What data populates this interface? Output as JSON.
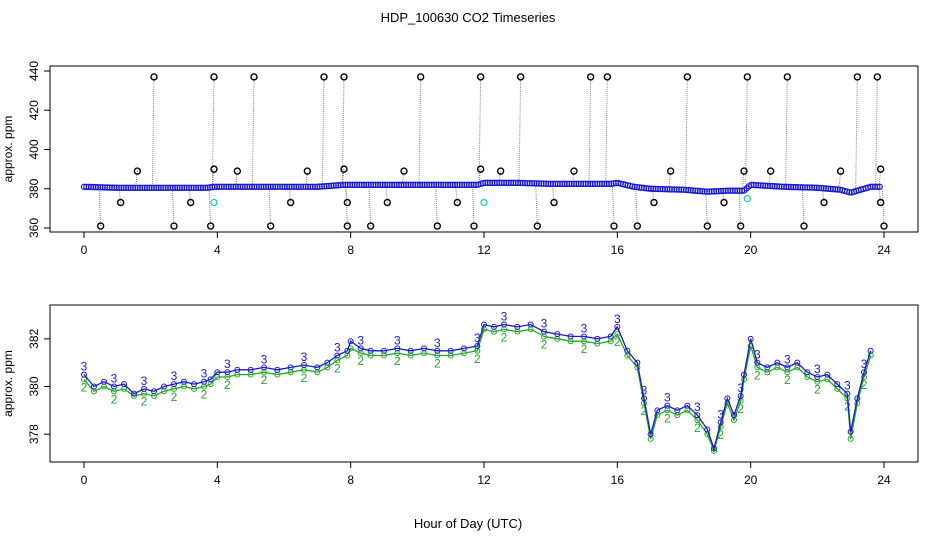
{
  "title": "HDP_100630  CO2 Timeseries",
  "xlabel": "Hour of Day (UTC)",
  "colors": {
    "frame": "#000000",
    "series1": "#1a1acc",
    "series2": "#22aa22",
    "cyan": "#22cccc",
    "spike": "#888888",
    "flag": "#000000"
  },
  "chart_data": [
    {
      "type": "scatter",
      "name": "top-panel",
      "ylabel": "approx. ppm",
      "xlim": [
        0,
        24
      ],
      "ylim": [
        360,
        440
      ],
      "xticks": [
        0,
        4,
        8,
        12,
        16,
        20,
        24
      ],
      "yticks": [
        360,
        380,
        400,
        420,
        440
      ],
      "baseline": [
        [
          0,
          381
        ],
        [
          1,
          380.5
        ],
        [
          2,
          380.5
        ],
        [
          3,
          380.5
        ],
        [
          3.7,
          380.5
        ],
        [
          3.9,
          381
        ],
        [
          5,
          381
        ],
        [
          6,
          381
        ],
        [
          7,
          381
        ],
        [
          7.8,
          382
        ],
        [
          8,
          382
        ],
        [
          9,
          382
        ],
        [
          10,
          382
        ],
        [
          11,
          382
        ],
        [
          11.8,
          382
        ],
        [
          12,
          383
        ],
        [
          13,
          383
        ],
        [
          14,
          382.5
        ],
        [
          15,
          382.5
        ],
        [
          15.8,
          382.5
        ],
        [
          16,
          383
        ],
        [
          16.5,
          381
        ],
        [
          17,
          380
        ],
        [
          18,
          379.5
        ],
        [
          18.7,
          378.5
        ],
        [
          19.3,
          379
        ],
        [
          19.8,
          379
        ],
        [
          20,
          382
        ],
        [
          21,
          381
        ],
        [
          22,
          380.5
        ],
        [
          22.7,
          379.5
        ],
        [
          23,
          378
        ],
        [
          23.6,
          381
        ]
      ],
      "cyan_points": [
        [
          3.9,
          373
        ],
        [
          12.0,
          373
        ],
        [
          19.9,
          375
        ]
      ],
      "flag_points": [
        [
          0.5,
          361
        ],
        [
          1.1,
          373
        ],
        [
          1.6,
          389
        ],
        [
          2.1,
          437
        ],
        [
          2.7,
          361
        ],
        [
          3.2,
          373
        ],
        [
          3.9,
          437
        ],
        [
          3.9,
          390
        ],
        [
          3.8,
          361
        ],
        [
          4.6,
          389
        ],
        [
          5.1,
          437
        ],
        [
          5.6,
          361
        ],
        [
          6.2,
          373
        ],
        [
          6.7,
          389
        ],
        [
          7.2,
          437
        ],
        [
          7.8,
          437
        ],
        [
          7.8,
          390
        ],
        [
          7.9,
          373
        ],
        [
          7.9,
          361
        ],
        [
          8.6,
          361
        ],
        [
          9.1,
          373
        ],
        [
          9.6,
          389
        ],
        [
          10.1,
          437
        ],
        [
          10.6,
          361
        ],
        [
          11.2,
          373
        ],
        [
          11.7,
          361
        ],
        [
          11.9,
          390
        ],
        [
          11.9,
          437
        ],
        [
          12.5,
          389
        ],
        [
          13.1,
          437
        ],
        [
          13.6,
          361
        ],
        [
          14.1,
          373
        ],
        [
          14.7,
          389
        ],
        [
          15.2,
          437
        ],
        [
          15.7,
          437
        ],
        [
          15.9,
          361
        ],
        [
          16.6,
          361
        ],
        [
          17.1,
          373
        ],
        [
          17.6,
          389
        ],
        [
          18.1,
          437
        ],
        [
          18.7,
          361
        ],
        [
          19.2,
          373
        ],
        [
          19.7,
          361
        ],
        [
          19.8,
          389
        ],
        [
          19.9,
          437
        ],
        [
          20.6,
          389
        ],
        [
          21.1,
          437
        ],
        [
          21.6,
          361
        ],
        [
          22.2,
          373
        ],
        [
          22.7,
          389
        ],
        [
          23.2,
          437
        ],
        [
          23.8,
          437
        ],
        [
          23.9,
          390
        ],
        [
          23.9,
          373
        ],
        [
          24.0,
          361
        ]
      ]
    },
    {
      "type": "line",
      "name": "bottom-panel",
      "ylabel": "approx. ppm",
      "xlim": [
        0,
        24
      ],
      "ylim": [
        377,
        383
      ],
      "xticks": [
        0,
        4,
        8,
        12,
        16,
        20,
        24
      ],
      "yticks": [
        378,
        380,
        382
      ],
      "series": [
        {
          "name": "3",
          "points": [
            [
              0,
              380.5
            ],
            [
              0.3,
              380.0
            ],
            [
              0.6,
              380.2
            ],
            [
              0.9,
              380.0
            ],
            [
              1.2,
              380.1
            ],
            [
              1.5,
              379.7
            ],
            [
              1.8,
              379.9
            ],
            [
              2.1,
              379.8
            ],
            [
              2.4,
              380.0
            ],
            [
              2.7,
              380.1
            ],
            [
              3.0,
              380.2
            ],
            [
              3.3,
              380.1
            ],
            [
              3.6,
              380.2
            ],
            [
              3.8,
              380.3
            ],
            [
              4.0,
              380.6
            ],
            [
              4.3,
              380.6
            ],
            [
              4.6,
              380.7
            ],
            [
              5.0,
              380.7
            ],
            [
              5.4,
              380.8
            ],
            [
              5.8,
              380.7
            ],
            [
              6.2,
              380.8
            ],
            [
              6.6,
              380.9
            ],
            [
              7.0,
              380.8
            ],
            [
              7.3,
              381.0
            ],
            [
              7.6,
              381.3
            ],
            [
              7.9,
              381.5
            ],
            [
              8.0,
              381.9
            ],
            [
              8.3,
              381.6
            ],
            [
              8.6,
              381.5
            ],
            [
              9.0,
              381.5
            ],
            [
              9.4,
              381.6
            ],
            [
              9.8,
              381.5
            ],
            [
              10.2,
              381.6
            ],
            [
              10.6,
              381.5
            ],
            [
              11.0,
              381.5
            ],
            [
              11.4,
              381.6
            ],
            [
              11.8,
              381.7
            ],
            [
              12.0,
              382.6
            ],
            [
              12.3,
              382.5
            ],
            [
              12.6,
              382.6
            ],
            [
              13.0,
              382.5
            ],
            [
              13.4,
              382.6
            ],
            [
              13.8,
              382.3
            ],
            [
              14.2,
              382.2
            ],
            [
              14.6,
              382.1
            ],
            [
              15.0,
              382.1
            ],
            [
              15.4,
              382.0
            ],
            [
              15.8,
              382.1
            ],
            [
              16.0,
              382.5
            ],
            [
              16.3,
              381.5
            ],
            [
              16.6,
              381.0
            ],
            [
              16.8,
              379.5
            ],
            [
              17.0,
              378.0
            ],
            [
              17.2,
              379.0
            ],
            [
              17.5,
              379.2
            ],
            [
              17.8,
              379.0
            ],
            [
              18.1,
              379.2
            ],
            [
              18.4,
              378.8
            ],
            [
              18.7,
              378.2
            ],
            [
              18.9,
              377.4
            ],
            [
              19.1,
              378.5
            ],
            [
              19.3,
              379.5
            ],
            [
              19.5,
              378.8
            ],
            [
              19.7,
              379.6
            ],
            [
              19.8,
              380.5
            ],
            [
              20.0,
              382.0
            ],
            [
              20.2,
              381.0
            ],
            [
              20.5,
              380.8
            ],
            [
              20.8,
              381.0
            ],
            [
              21.1,
              380.8
            ],
            [
              21.4,
              381.0
            ],
            [
              21.7,
              380.6
            ],
            [
              22.0,
              380.4
            ],
            [
              22.3,
              380.5
            ],
            [
              22.6,
              380.1
            ],
            [
              22.9,
              379.7
            ],
            [
              23.0,
              378.1
            ],
            [
              23.2,
              379.5
            ],
            [
              23.4,
              380.6
            ],
            [
              23.6,
              381.5
            ]
          ]
        },
        {
          "name": "2",
          "points": [
            [
              0,
              380.3
            ],
            [
              0.3,
              379.8
            ],
            [
              0.6,
              380.0
            ],
            [
              0.9,
              379.8
            ],
            [
              1.2,
              379.9
            ],
            [
              1.5,
              379.6
            ],
            [
              1.8,
              379.7
            ],
            [
              2.1,
              379.6
            ],
            [
              2.4,
              379.8
            ],
            [
              2.7,
              379.9
            ],
            [
              3.0,
              380.0
            ],
            [
              3.3,
              379.9
            ],
            [
              3.6,
              380.0
            ],
            [
              3.8,
              380.1
            ],
            [
              4.0,
              380.4
            ],
            [
              4.3,
              380.4
            ],
            [
              4.6,
              380.5
            ],
            [
              5.0,
              380.5
            ],
            [
              5.4,
              380.6
            ],
            [
              5.8,
              380.5
            ],
            [
              6.2,
              380.6
            ],
            [
              6.6,
              380.7
            ],
            [
              7.0,
              380.6
            ],
            [
              7.3,
              380.8
            ],
            [
              7.6,
              381.1
            ],
            [
              7.9,
              381.3
            ],
            [
              8.0,
              381.6
            ],
            [
              8.3,
              381.4
            ],
            [
              8.6,
              381.3
            ],
            [
              9.0,
              381.3
            ],
            [
              9.4,
              381.4
            ],
            [
              9.8,
              381.3
            ],
            [
              10.2,
              381.4
            ],
            [
              10.6,
              381.3
            ],
            [
              11.0,
              381.3
            ],
            [
              11.4,
              381.4
            ],
            [
              11.8,
              381.5
            ],
            [
              12.0,
              382.4
            ],
            [
              12.3,
              382.3
            ],
            [
              12.6,
              382.4
            ],
            [
              13.0,
              382.3
            ],
            [
              13.4,
              382.4
            ],
            [
              13.8,
              382.1
            ],
            [
              14.2,
              382.0
            ],
            [
              14.6,
              381.9
            ],
            [
              15.0,
              381.9
            ],
            [
              15.4,
              381.8
            ],
            [
              15.8,
              381.9
            ],
            [
              16.0,
              382.2
            ],
            [
              16.3,
              381.3
            ],
            [
              16.6,
              380.8
            ],
            [
              16.8,
              379.3
            ],
            [
              17.0,
              377.8
            ],
            [
              17.2,
              378.8
            ],
            [
              17.5,
              379.0
            ],
            [
              17.8,
              378.8
            ],
            [
              18.1,
              379.0
            ],
            [
              18.4,
              378.6
            ],
            [
              18.7,
              378.0
            ],
            [
              18.9,
              377.3
            ],
            [
              19.1,
              378.3
            ],
            [
              19.3,
              379.3
            ],
            [
              19.5,
              378.6
            ],
            [
              19.7,
              379.4
            ],
            [
              19.8,
              380.3
            ],
            [
              20.0,
              381.7
            ],
            [
              20.2,
              380.8
            ],
            [
              20.5,
              380.6
            ],
            [
              20.8,
              380.8
            ],
            [
              21.1,
              380.6
            ],
            [
              21.4,
              380.8
            ],
            [
              21.7,
              380.4
            ],
            [
              22.0,
              380.2
            ],
            [
              22.3,
              380.3
            ],
            [
              22.6,
              379.9
            ],
            [
              22.9,
              379.5
            ],
            [
              23.0,
              377.8
            ],
            [
              23.2,
              379.3
            ],
            [
              23.4,
              380.4
            ],
            [
              23.6,
              381.3
            ]
          ]
        }
      ]
    }
  ]
}
